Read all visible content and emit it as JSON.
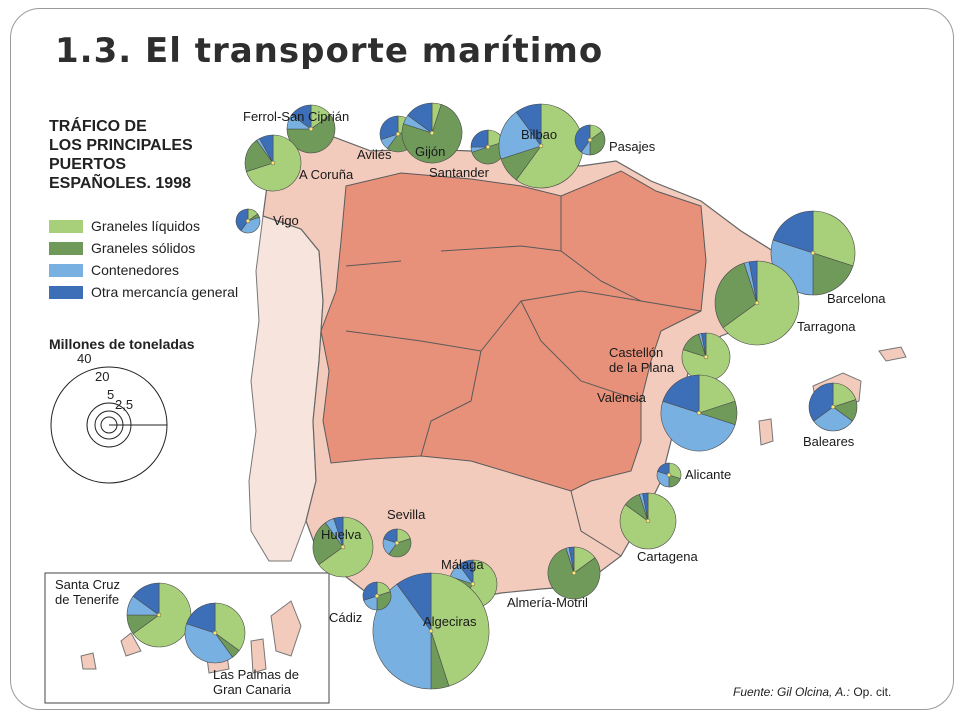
{
  "title": "1.3. El transporte marítimo",
  "legend": {
    "title_lines": [
      "TRÁFICO DE",
      "LOS PRINCIPALES",
      "PUERTOS",
      "ESPAÑOLES. 1998"
    ],
    "items": [
      {
        "label": "Graneles líquidos",
        "color": "#a8d07a"
      },
      {
        "label": "Graneles sólidos",
        "color": "#6f9a5a"
      },
      {
        "label": "Contenedores",
        "color": "#78b0e2"
      },
      {
        "label": "Otra mercancía general",
        "color": "#3c6fb8"
      }
    ]
  },
  "scale": {
    "title": "Millones de toneladas",
    "values": [
      "40",
      "20",
      "5",
      "2,5"
    ]
  },
  "ports": [
    {
      "name": "Ferrol-San Ciprián"
    },
    {
      "name": "A Coruña"
    },
    {
      "name": "Vigo"
    },
    {
      "name": "Avilés"
    },
    {
      "name": "Gijón"
    },
    {
      "name": "Santander"
    },
    {
      "name": "Bilbao"
    },
    {
      "name": "Pasajes"
    },
    {
      "name": "Barcelona"
    },
    {
      "name": "Tarragona"
    },
    {
      "name": "Castellón de la Plana",
      "lines": [
        "Castellón",
        "de la Plana"
      ]
    },
    {
      "name": "Valencia"
    },
    {
      "name": "Baleares"
    },
    {
      "name": "Alicante"
    },
    {
      "name": "Cartagena"
    },
    {
      "name": "Almería-Motril"
    },
    {
      "name": "Málaga"
    },
    {
      "name": "Algeciras"
    },
    {
      "name": "Cádiz"
    },
    {
      "name": "Sevilla"
    },
    {
      "name": "Huelva"
    },
    {
      "name": "Santa Cruz de Tenerife",
      "lines": [
        "Santa Cruz",
        "de Tenerife"
      ]
    },
    {
      "name": "Las Palmas de Gran Canaria",
      "lines": [
        "Las Palmas de",
        "Gran Canaria"
      ]
    }
  ],
  "source": {
    "prefix": "Fuente:",
    "author": "Gil Olcina, A.:",
    "work": "Op. cit."
  },
  "colors": {
    "land": "#f2cbbd",
    "interior": "#e8917a",
    "sea": "#ffffff",
    "border": "#5a5a5a"
  }
}
